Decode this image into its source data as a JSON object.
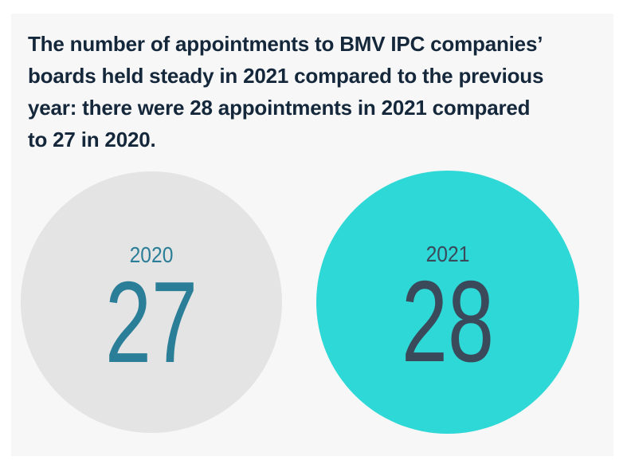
{
  "page": {
    "background_color": "#ffffff",
    "panel_background_color": "#f7f7f7"
  },
  "intro": {
    "text_color": "#15283b",
    "lines": [
      "The number of appointments to BMV IPC companies’",
      "boards held steady in 2021 compared to the previous",
      "year: there were 28 appointments in 2021 compared",
      "to 27 in 2020."
    ]
  },
  "chart_data": {
    "type": "bubble",
    "title": "The number of appointments to BMV IPC companies’ boards held steady in 2021 compared to the previous year: there were 28 appointments in 2021 compared to 27 in 2020.",
    "categories": [
      "2020",
      "2021"
    ],
    "values": [
      27,
      28
    ],
    "legend": "none",
    "layout": "two circles side by side, value centered inside each circle with year label above",
    "series": [
      {
        "label": "2020",
        "value": 27,
        "circle_color": "#e4e4e4",
        "text_color": "#2b7e97"
      },
      {
        "label": "2021",
        "value": 28,
        "circle_color": "#2dd8d6",
        "text_color": "#3a4a5b"
      }
    ]
  }
}
